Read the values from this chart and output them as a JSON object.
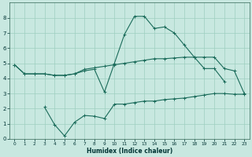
{
  "bg_color": "#c8e8e0",
  "grid_color": "#9ecfbf",
  "line_color": "#1a6b5a",
  "xlabel": "Humidex (Indice chaleur)",
  "xlim": [
    -0.5,
    23.5
  ],
  "ylim": [
    0,
    9
  ],
  "xticks": [
    0,
    1,
    2,
    3,
    4,
    5,
    6,
    7,
    8,
    9,
    10,
    11,
    12,
    13,
    14,
    15,
    16,
    17,
    18,
    19,
    20,
    21,
    22,
    23
  ],
  "yticks": [
    0,
    1,
    2,
    3,
    4,
    5,
    6,
    7,
    8
  ],
  "series": [
    {
      "x": [
        0,
        1,
        2,
        3,
        4,
        5,
        6,
        7,
        8,
        9,
        10,
        11,
        12,
        13,
        14,
        15,
        16,
        17,
        18,
        19,
        20,
        21,
        22,
        23
      ],
      "y": [
        4.9,
        4.3,
        4.3,
        4.3,
        4.2,
        4.2,
        4.3,
        4.6,
        4.7,
        4.8,
        4.9,
        5.0,
        5.1,
        5.2,
        5.3,
        5.3,
        5.35,
        5.4,
        5.4,
        5.4,
        5.4,
        4.65,
        4.5,
        3.0
      ]
    },
    {
      "x": [
        0,
        1,
        2,
        3,
        4,
        5,
        6,
        7,
        8,
        9,
        10,
        11,
        12,
        13,
        14,
        15,
        16,
        17,
        18,
        19,
        20,
        21
      ],
      "y": [
        4.9,
        4.3,
        4.3,
        4.3,
        4.2,
        4.2,
        4.3,
        4.5,
        4.6,
        3.1,
        5.0,
        6.9,
        8.1,
        8.1,
        7.3,
        7.4,
        7.0,
        6.2,
        5.4,
        4.65,
        4.65,
        3.8
      ]
    },
    {
      "x": [
        3,
        4,
        5,
        6,
        7,
        8,
        9,
        10,
        11,
        12,
        13,
        14,
        15,
        16,
        17,
        18,
        19,
        20,
        21,
        22,
        23
      ],
      "y": [
        2.1,
        0.95,
        0.2,
        1.1,
        1.55,
        1.5,
        1.35,
        2.3,
        2.3,
        2.4,
        2.5,
        2.5,
        2.6,
        2.65,
        2.7,
        2.8,
        2.9,
        3.0,
        3.0,
        2.95,
        2.95
      ]
    }
  ]
}
